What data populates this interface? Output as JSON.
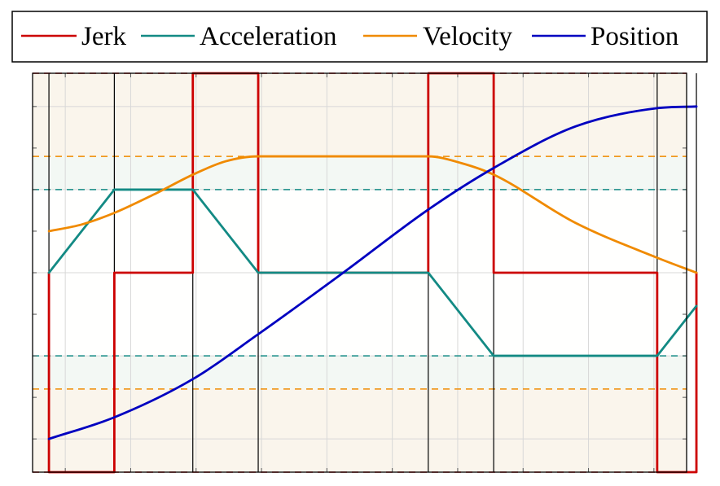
{
  "chart_data": {
    "type": "line",
    "title": "",
    "xlabel": "",
    "ylabel": "",
    "tick_labels_shown": false,
    "xlim": [
      0,
      10
    ],
    "ylim": [
      -1.2,
      1.2
    ],
    "legend": {
      "placement": "top",
      "entries": [
        "Jerk",
        "Acceleration",
        "Velocity",
        "Position"
      ]
    },
    "colors": {
      "jerk": "#cc0000",
      "acceleration": "#138a84",
      "velocity": "#f08a00",
      "position": "#0000c0",
      "plot_background": "#faf5ec",
      "limit_band": "#f9d9d9",
      "accel_band": "#f3f8f4",
      "velocity_band": "#faf4ec"
    },
    "phase_boundaries": [
      0.25,
      1.25,
      2.45,
      3.45,
      6.05,
      7.05,
      9.55,
      10.15
    ],
    "limits": {
      "jerk": 1.2,
      "acceleration": 0.5,
      "velocity": 0.7
    },
    "series": [
      {
        "name": "Jerk",
        "key": "jerk",
        "style": "step",
        "x": [
          0.25,
          0.25,
          1.25,
          1.25,
          2.45,
          2.45,
          3.45,
          3.45,
          6.05,
          6.05,
          7.05,
          7.05,
          9.55,
          9.55,
          10.15,
          10.15
        ],
        "y": [
          0,
          -1.2,
          -1.2,
          0,
          0,
          1.2,
          1.2,
          0,
          0,
          1.2,
          1.2,
          0,
          0,
          -1.2,
          -1.2,
          0
        ]
      },
      {
        "name": "Acceleration",
        "key": "acceleration",
        "style": "linear",
        "x": [
          0.25,
          1.25,
          2.45,
          3.45,
          6.05,
          7.05,
          9.55,
          10.15
        ],
        "y": [
          0,
          0.5,
          0.5,
          0,
          0,
          -0.5,
          -0.5,
          -0.2
        ]
      },
      {
        "name": "Velocity",
        "key": "velocity",
        "style": "smooth",
        "x": [
          0.25,
          0.75,
          1.25,
          1.85,
          2.45,
          2.95,
          3.45,
          4.75,
          6.05,
          6.55,
          7.05,
          8.3,
          9.55,
          10.15
        ],
        "y": [
          0.25,
          0.29,
          0.36,
          0.47,
          0.59,
          0.67,
          0.7,
          0.7,
          0.7,
          0.66,
          0.59,
          0.3,
          0.09,
          0
        ]
      },
      {
        "name": "Position",
        "key": "position",
        "style": "smooth",
        "x": [
          0.25,
          1.25,
          2.45,
          3.45,
          4.75,
          6.05,
          7.05,
          8.3,
          9.55,
          10.15
        ],
        "y": [
          -1,
          -0.87,
          -0.64,
          -0.37,
          0,
          0.38,
          0.63,
          0.88,
          0.99,
          1
        ]
      }
    ]
  }
}
